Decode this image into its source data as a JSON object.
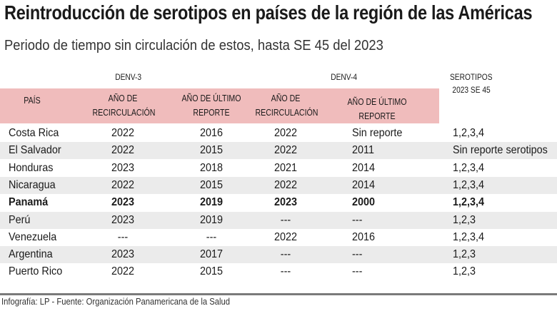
{
  "title": "Reintroducción de serotipos en países de la región de las Américas",
  "subtitle": "Periodo de tiempo sin circulación de estos, hasta SE 45 del 2023",
  "groups": {
    "denv3": "DENV-3",
    "denv4": "DENV-4",
    "serotipos_1": "SEROTIPOS",
    "serotipos_2": "2023 SE 45"
  },
  "headers": {
    "pais": "PAÍS",
    "recirc_1": "AÑO DE",
    "recirc_2": "RECIRCULACIÓN",
    "ultimo_1": "AÑO DE ÚLTIMO",
    "ultimo_2": "REPORTE"
  },
  "colors": {
    "header_bg": "#f0bcbc",
    "alt_row": "#ebebeb",
    "rule": "#7a7a7a"
  },
  "chart_data": {
    "type": "table",
    "columns": [
      "País",
      "DENV-3 Año de recirculación",
      "DENV-3 Año de último reporte",
      "DENV-4 Año de recirculación",
      "DENV-4 Año de último reporte",
      "Serotipos 2023 SE 45"
    ],
    "rows": [
      [
        "Costa Rica",
        "2022",
        "2016",
        "2022",
        "Sin reporte",
        "1,2,3,4"
      ],
      [
        "El Salvador",
        "2022",
        "2015",
        "2022",
        "2011",
        "Sin reporte serotipos"
      ],
      [
        "Honduras",
        "2023",
        "2018",
        "2021",
        "2014",
        "1,2,3,4"
      ],
      [
        "Nicaragua",
        "2022",
        "2015",
        "2022",
        "2014",
        "1,2,3,4"
      ],
      [
        "Panamá",
        "2023",
        "2019",
        "2023",
        "2000",
        "1,2,3,4"
      ],
      [
        "Perú",
        "2023",
        "2019",
        "---",
        "---",
        "1,2,3"
      ],
      [
        "Venezuela",
        "---",
        "---",
        "2022",
        "2016",
        "1,2,3,4"
      ],
      [
        "Argentina",
        "2023",
        "2017",
        "---",
        "---",
        "1,2,3"
      ],
      [
        "Puerto Rico",
        "2022",
        "2015",
        "---",
        "---",
        "1,2,3"
      ]
    ],
    "highlighted_row": "Panamá"
  },
  "footer": "Infografía: LP - Fuente: Organización Panamericana de la Salud"
}
